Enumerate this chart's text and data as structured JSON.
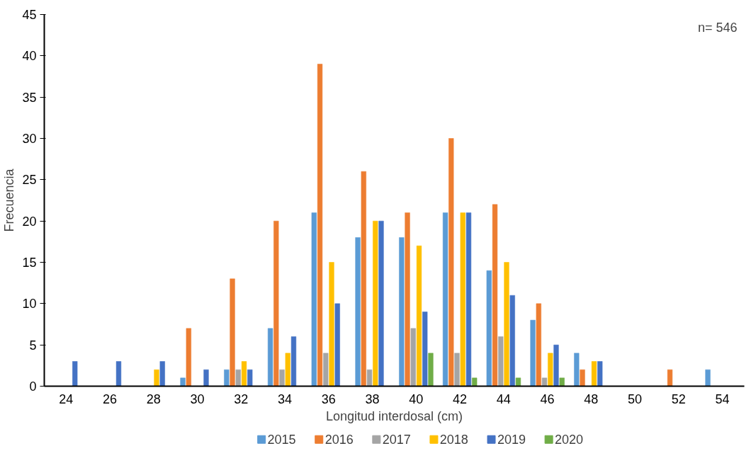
{
  "chart_data": {
    "type": "bar",
    "xlabel": "Longitud interdosal (cm)",
    "ylabel": "Frecuencia",
    "categories": [
      "24",
      "26",
      "28",
      "30",
      "32",
      "34",
      "36",
      "38",
      "40",
      "42",
      "44",
      "46",
      "48",
      "50",
      "52",
      "54"
    ],
    "series": [
      {
        "name": "2015",
        "color": "#5b9bd5",
        "values": [
          0,
          0,
          0,
          1,
          2,
          7,
          21,
          18,
          18,
          21,
          14,
          8,
          4,
          0,
          0,
          2
        ]
      },
      {
        "name": "2016",
        "color": "#ed7d31",
        "values": [
          0,
          0,
          0,
          7,
          13,
          20,
          39,
          26,
          21,
          30,
          22,
          10,
          2,
          0,
          2,
          0
        ]
      },
      {
        "name": "2017",
        "color": "#a5a5a5",
        "values": [
          0,
          0,
          0,
          0,
          2,
          2,
          4,
          2,
          7,
          4,
          6,
          1,
          0,
          0,
          0,
          0
        ]
      },
      {
        "name": "2018",
        "color": "#ffc000",
        "values": [
          0,
          0,
          2,
          0,
          3,
          4,
          15,
          20,
          17,
          21,
          15,
          4,
          3,
          0,
          0,
          0
        ]
      },
      {
        "name": "2019",
        "color": "#4472c4",
        "values": [
          3,
          3,
          3,
          2,
          2,
          6,
          10,
          20,
          9,
          21,
          11,
          5,
          3,
          0,
          0,
          0
        ]
      },
      {
        "name": "2020",
        "color": "#70ad47",
        "values": [
          0,
          0,
          0,
          0,
          0,
          0,
          0,
          0,
          4,
          1,
          1,
          1,
          0,
          0,
          0,
          0
        ]
      }
    ],
    "ylim": [
      0,
      45
    ],
    "yticks": [
      0,
      5,
      10,
      15,
      20,
      25,
      30,
      35,
      40,
      45
    ],
    "annotations": [
      "n= 546"
    ],
    "legend": "bottom",
    "grid": false
  }
}
